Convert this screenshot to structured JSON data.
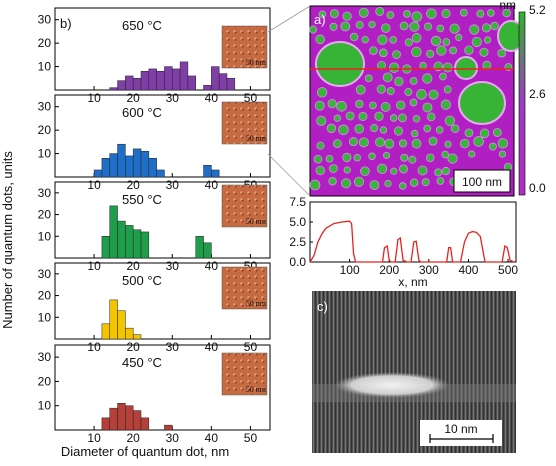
{
  "figure": {
    "panel_a_label": "a)",
    "panel_b_label": "b)",
    "panel_c_label": "c)",
    "inset_scale_label": "50 nm",
    "afm_scalebar_label": "100 nm",
    "tem_scalebar_label": "10 nm"
  },
  "colors": {
    "650": "#7f3fa6",
    "600": "#1f6fc8",
    "550": "#1e9e4a",
    "500": "#f5c400",
    "450": "#b5403a",
    "profile_line": "#e8231e",
    "afm_background": "#b21fc4",
    "afm_dot": "#39b33b"
  },
  "chart_data": [
    {
      "type": "bar",
      "panel": "b",
      "ylabel": "Number of quantum dots, units",
      "xlabel": "Diameter of quantum dot, nm",
      "xlim": [
        0,
        55
      ],
      "ylim": [
        0,
        35
      ],
      "xticks": [
        10,
        20,
        30,
        40,
        50
      ],
      "yticks": [
        10,
        20,
        30
      ],
      "bin_width": 2,
      "series": [
        {
          "name": "650 °C",
          "bin_start": [
            14,
            16,
            18,
            20,
            22,
            24,
            26,
            28,
            30,
            32,
            34,
            38,
            40,
            42,
            44
          ],
          "counts": [
            1,
            4,
            6,
            5,
            8,
            9,
            8,
            10,
            9,
            12,
            6,
            2,
            10,
            7,
            5
          ]
        },
        {
          "name": "600 °C",
          "bin_start": [
            10,
            12,
            14,
            16,
            18,
            20,
            22,
            24,
            26,
            38,
            40
          ],
          "counts": [
            3,
            8,
            10,
            14,
            9,
            12,
            11,
            8,
            3,
            5,
            3
          ]
        },
        {
          "name": "550 °C",
          "bin_start": [
            12,
            14,
            16,
            18,
            20,
            22,
            36,
            38
          ],
          "counts": [
            10,
            24,
            17,
            15,
            13,
            12,
            10,
            7
          ]
        },
        {
          "name": "500 °C",
          "bin_start": [
            12,
            14,
            16,
            18,
            20
          ],
          "counts": [
            7,
            18,
            13,
            5,
            2
          ]
        },
        {
          "name": "450 °C",
          "bin_start": [
            12,
            14,
            16,
            18,
            20,
            22,
            28
          ],
          "counts": [
            5,
            9,
            11,
            10,
            8,
            5,
            2
          ]
        }
      ]
    },
    {
      "type": "line",
      "panel": "a-profile",
      "xlabel": "x, nm",
      "ylabel": "",
      "xlim": [
        0,
        520
      ],
      "ylim": [
        0,
        7.5
      ],
      "xticks": [
        100,
        200,
        300,
        400,
        500
      ],
      "yticks": [
        0.0,
        2.5,
        5.0,
        7.5
      ],
      "x": [
        0,
        10,
        20,
        30,
        40,
        60,
        80,
        100,
        105,
        110,
        115,
        180,
        183,
        188,
        195,
        200,
        205,
        215,
        222,
        228,
        235,
        245,
        255,
        262,
        268,
        275,
        280,
        340,
        345,
        350,
        355,
        360,
        380,
        390,
        400,
        410,
        420,
        430,
        438,
        442,
        480,
        485,
        492,
        498,
        505,
        515
      ],
      "y": [
        0,
        0.8,
        2.5,
        3.5,
        4.2,
        4.8,
        5.0,
        5.1,
        4.8,
        1.0,
        0,
        0,
        0,
        1.8,
        2.0,
        0.2,
        0,
        0,
        2.8,
        3.0,
        0.2,
        0,
        0,
        2.5,
        2.6,
        0.2,
        0,
        0,
        0,
        1.8,
        1.8,
        0,
        0,
        2.5,
        3.6,
        3.8,
        3.7,
        3.2,
        1.0,
        0,
        0,
        0,
        2.0,
        1.8,
        0.2,
        0
      ]
    },
    {
      "type": "heatmap",
      "panel": "a-colorbar",
      "unit": "nm",
      "ticks": [
        "5.2",
        "2.6",
        "0.0"
      ]
    }
  ]
}
